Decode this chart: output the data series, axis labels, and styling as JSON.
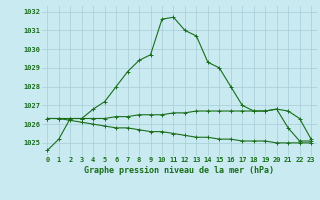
{
  "title": "Graphe pression niveau de la mer (hPa)",
  "bg_color": "#c8eaf0",
  "grid_color": "#a8ccd8",
  "line_color": "#1a6e1a",
  "xlim": [
    -0.5,
    23.5
  ],
  "ylim": [
    1024.3,
    1032.3
  ],
  "yticks": [
    1025,
    1026,
    1027,
    1028,
    1029,
    1030,
    1031,
    1032
  ],
  "xticks": [
    0,
    1,
    2,
    3,
    4,
    5,
    6,
    7,
    8,
    9,
    10,
    11,
    12,
    13,
    14,
    15,
    16,
    17,
    18,
    19,
    20,
    21,
    22,
    23
  ],
  "series1": [
    1024.6,
    1025.2,
    1026.3,
    1026.3,
    1026.8,
    1027.2,
    1028.0,
    1028.8,
    1029.4,
    1029.7,
    1031.6,
    1031.7,
    1031.0,
    1030.7,
    1029.3,
    1029.0,
    1028.0,
    1027.0,
    1026.7,
    1026.7,
    1026.8,
    1025.8,
    1025.1,
    1025.1
  ],
  "series2": [
    1026.3,
    1026.3,
    1026.3,
    1026.3,
    1026.3,
    1026.3,
    1026.4,
    1026.4,
    1026.5,
    1026.5,
    1026.5,
    1026.6,
    1026.6,
    1026.7,
    1026.7,
    1026.7,
    1026.7,
    1026.7,
    1026.7,
    1026.7,
    1026.8,
    1026.7,
    1026.3,
    1025.2
  ],
  "series3": [
    1026.3,
    1026.3,
    1026.2,
    1026.1,
    1026.0,
    1025.9,
    1025.8,
    1025.8,
    1025.7,
    1025.6,
    1025.6,
    1025.5,
    1025.4,
    1025.3,
    1025.3,
    1025.2,
    1025.2,
    1025.1,
    1025.1,
    1025.1,
    1025.0,
    1025.0,
    1025.0,
    1025.0
  ],
  "tick_fontsize": 5,
  "label_fontsize": 6,
  "linewidth": 0.8,
  "markersize": 2.5
}
